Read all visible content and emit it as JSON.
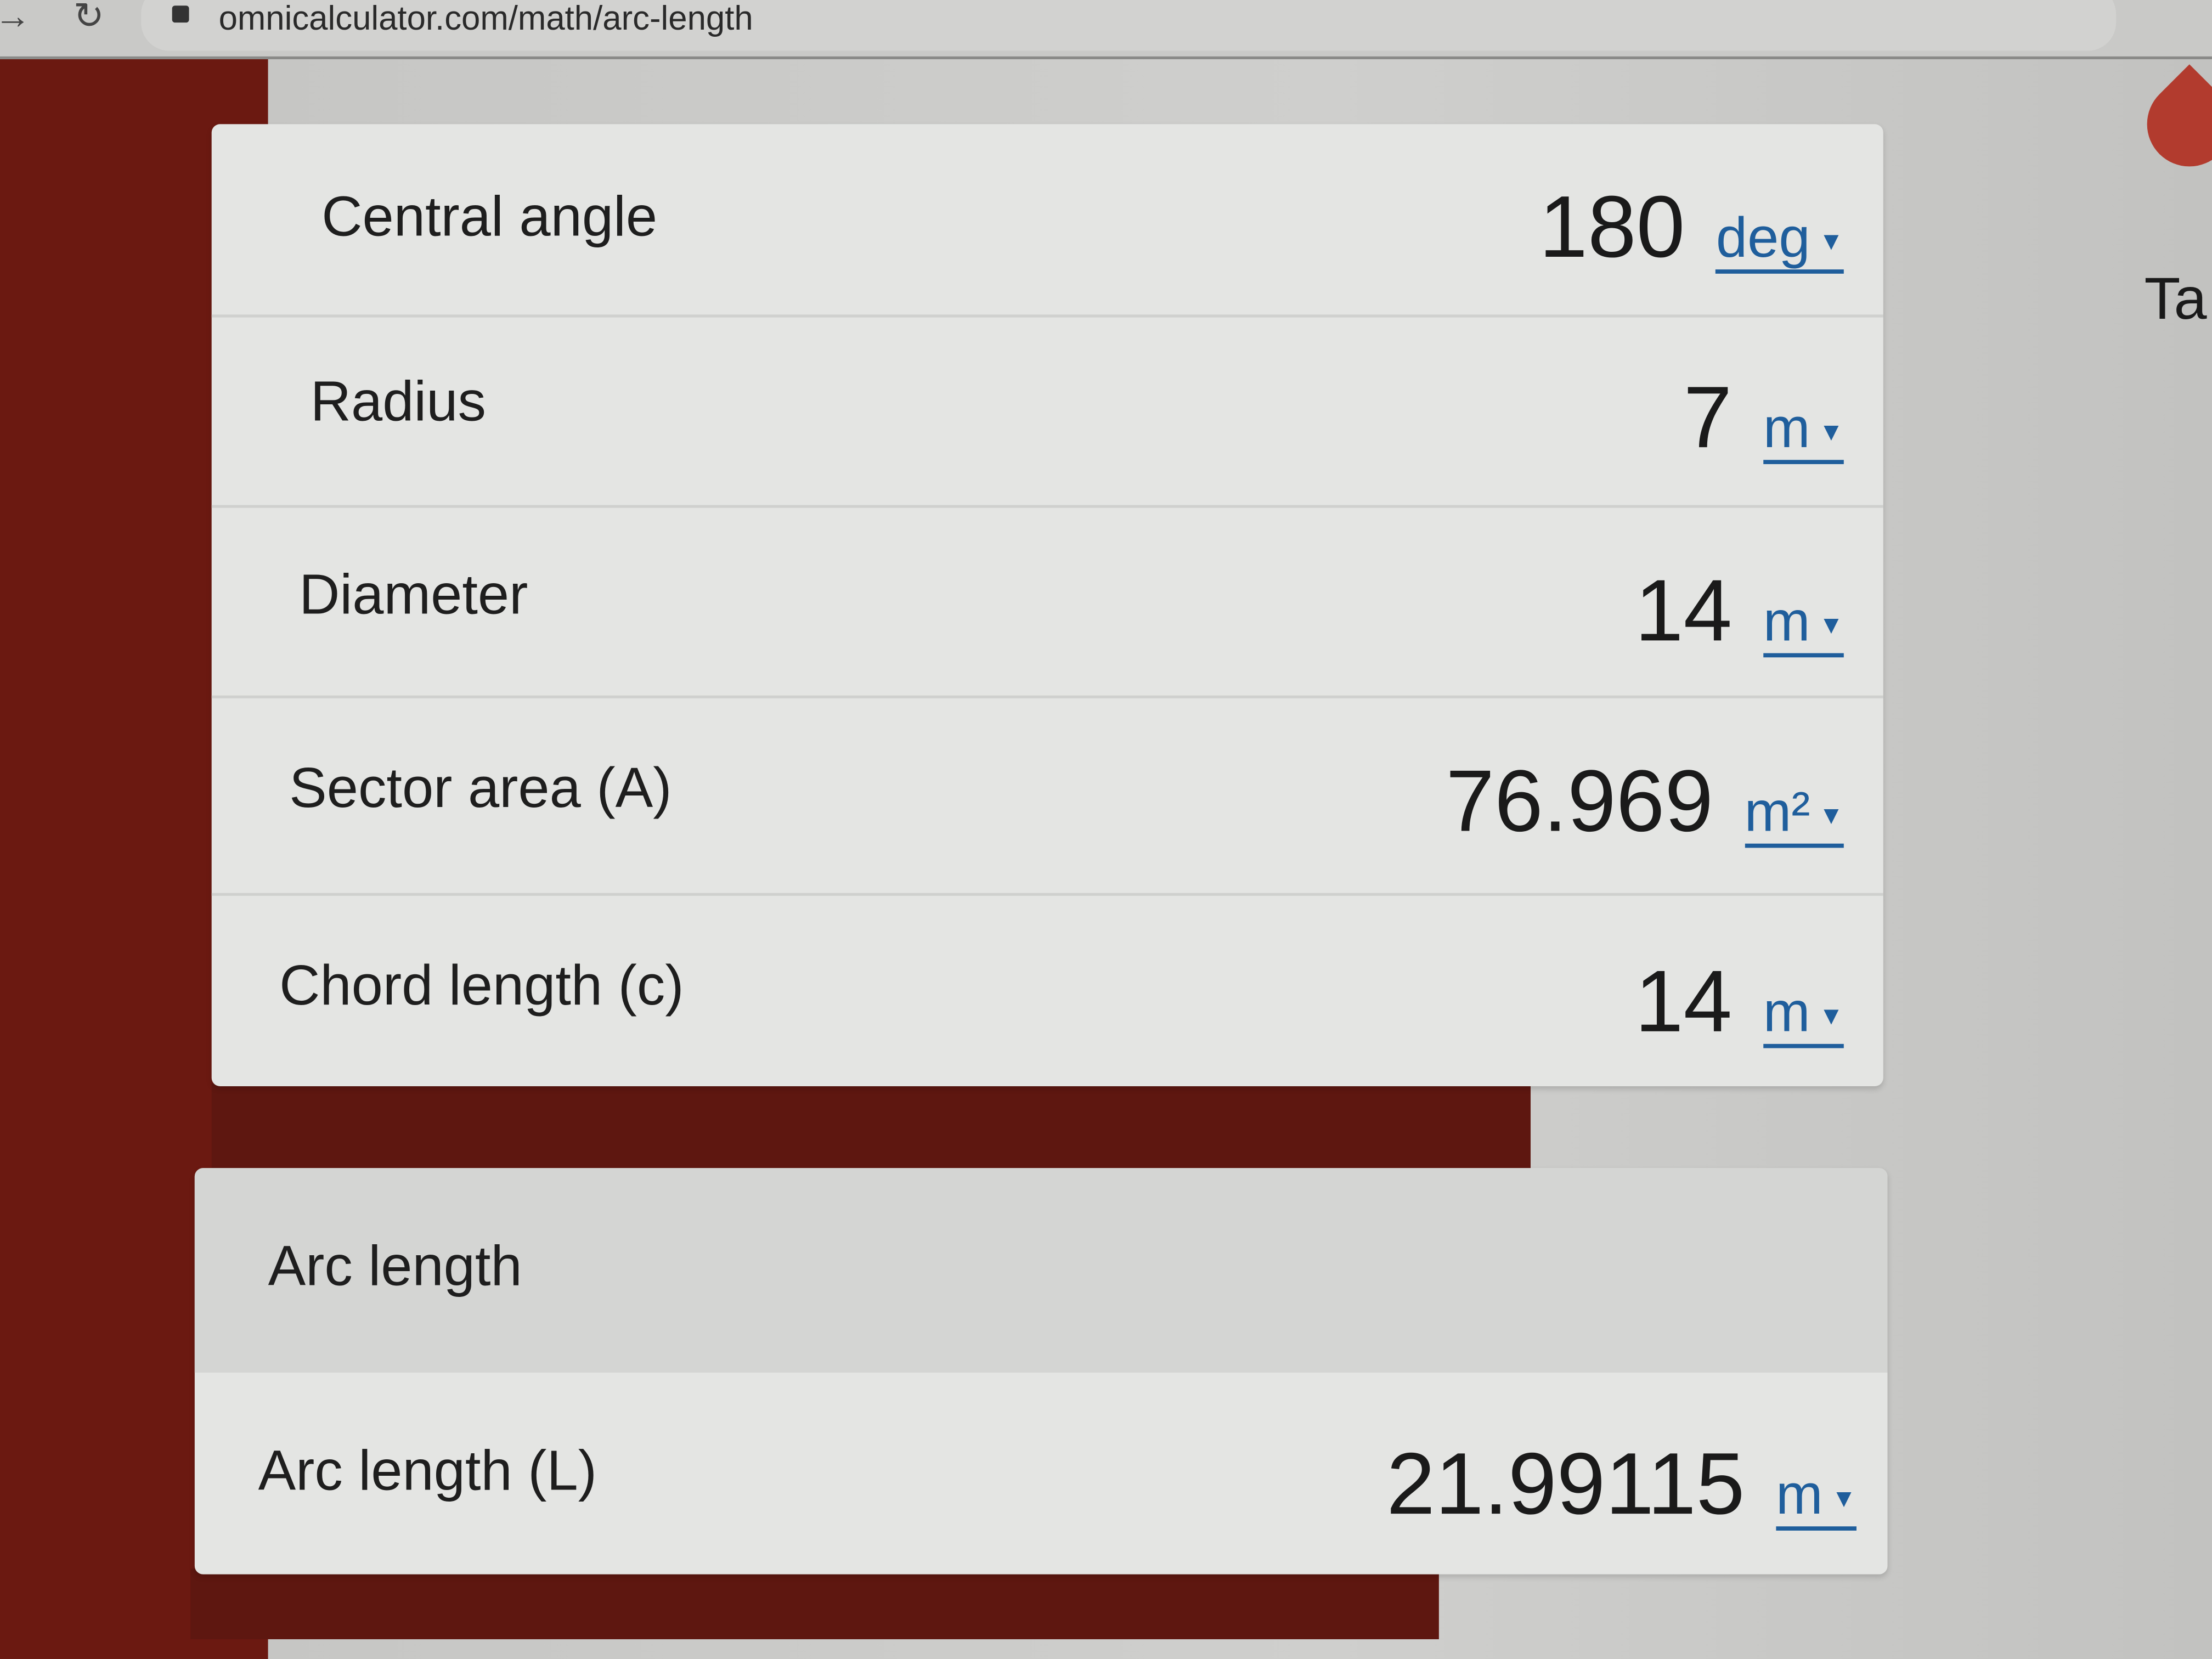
{
  "browser": {
    "url": "omnicalculator.com/math/arc-length"
  },
  "calculator": {
    "inputs": [
      {
        "label": "Central angle",
        "value": "180",
        "unit": "deg"
      },
      {
        "label": "Radius",
        "value": "7",
        "unit": "m"
      },
      {
        "label": "Diameter",
        "value": "14",
        "unit": "m"
      },
      {
        "label": "Sector area (A)",
        "value": "76.969",
        "unit": "m²"
      },
      {
        "label": "Chord length (c)",
        "value": "14",
        "unit": "m"
      }
    ],
    "result_section": {
      "title": "Arc length",
      "label": "Arc length (L)",
      "value": "21.99115",
      "unit": "m"
    }
  },
  "sidebar_right": {
    "partial_text": "Ta"
  },
  "colors": {
    "brand_red": "#6b1911",
    "link_blue": "#1f5e9c"
  }
}
